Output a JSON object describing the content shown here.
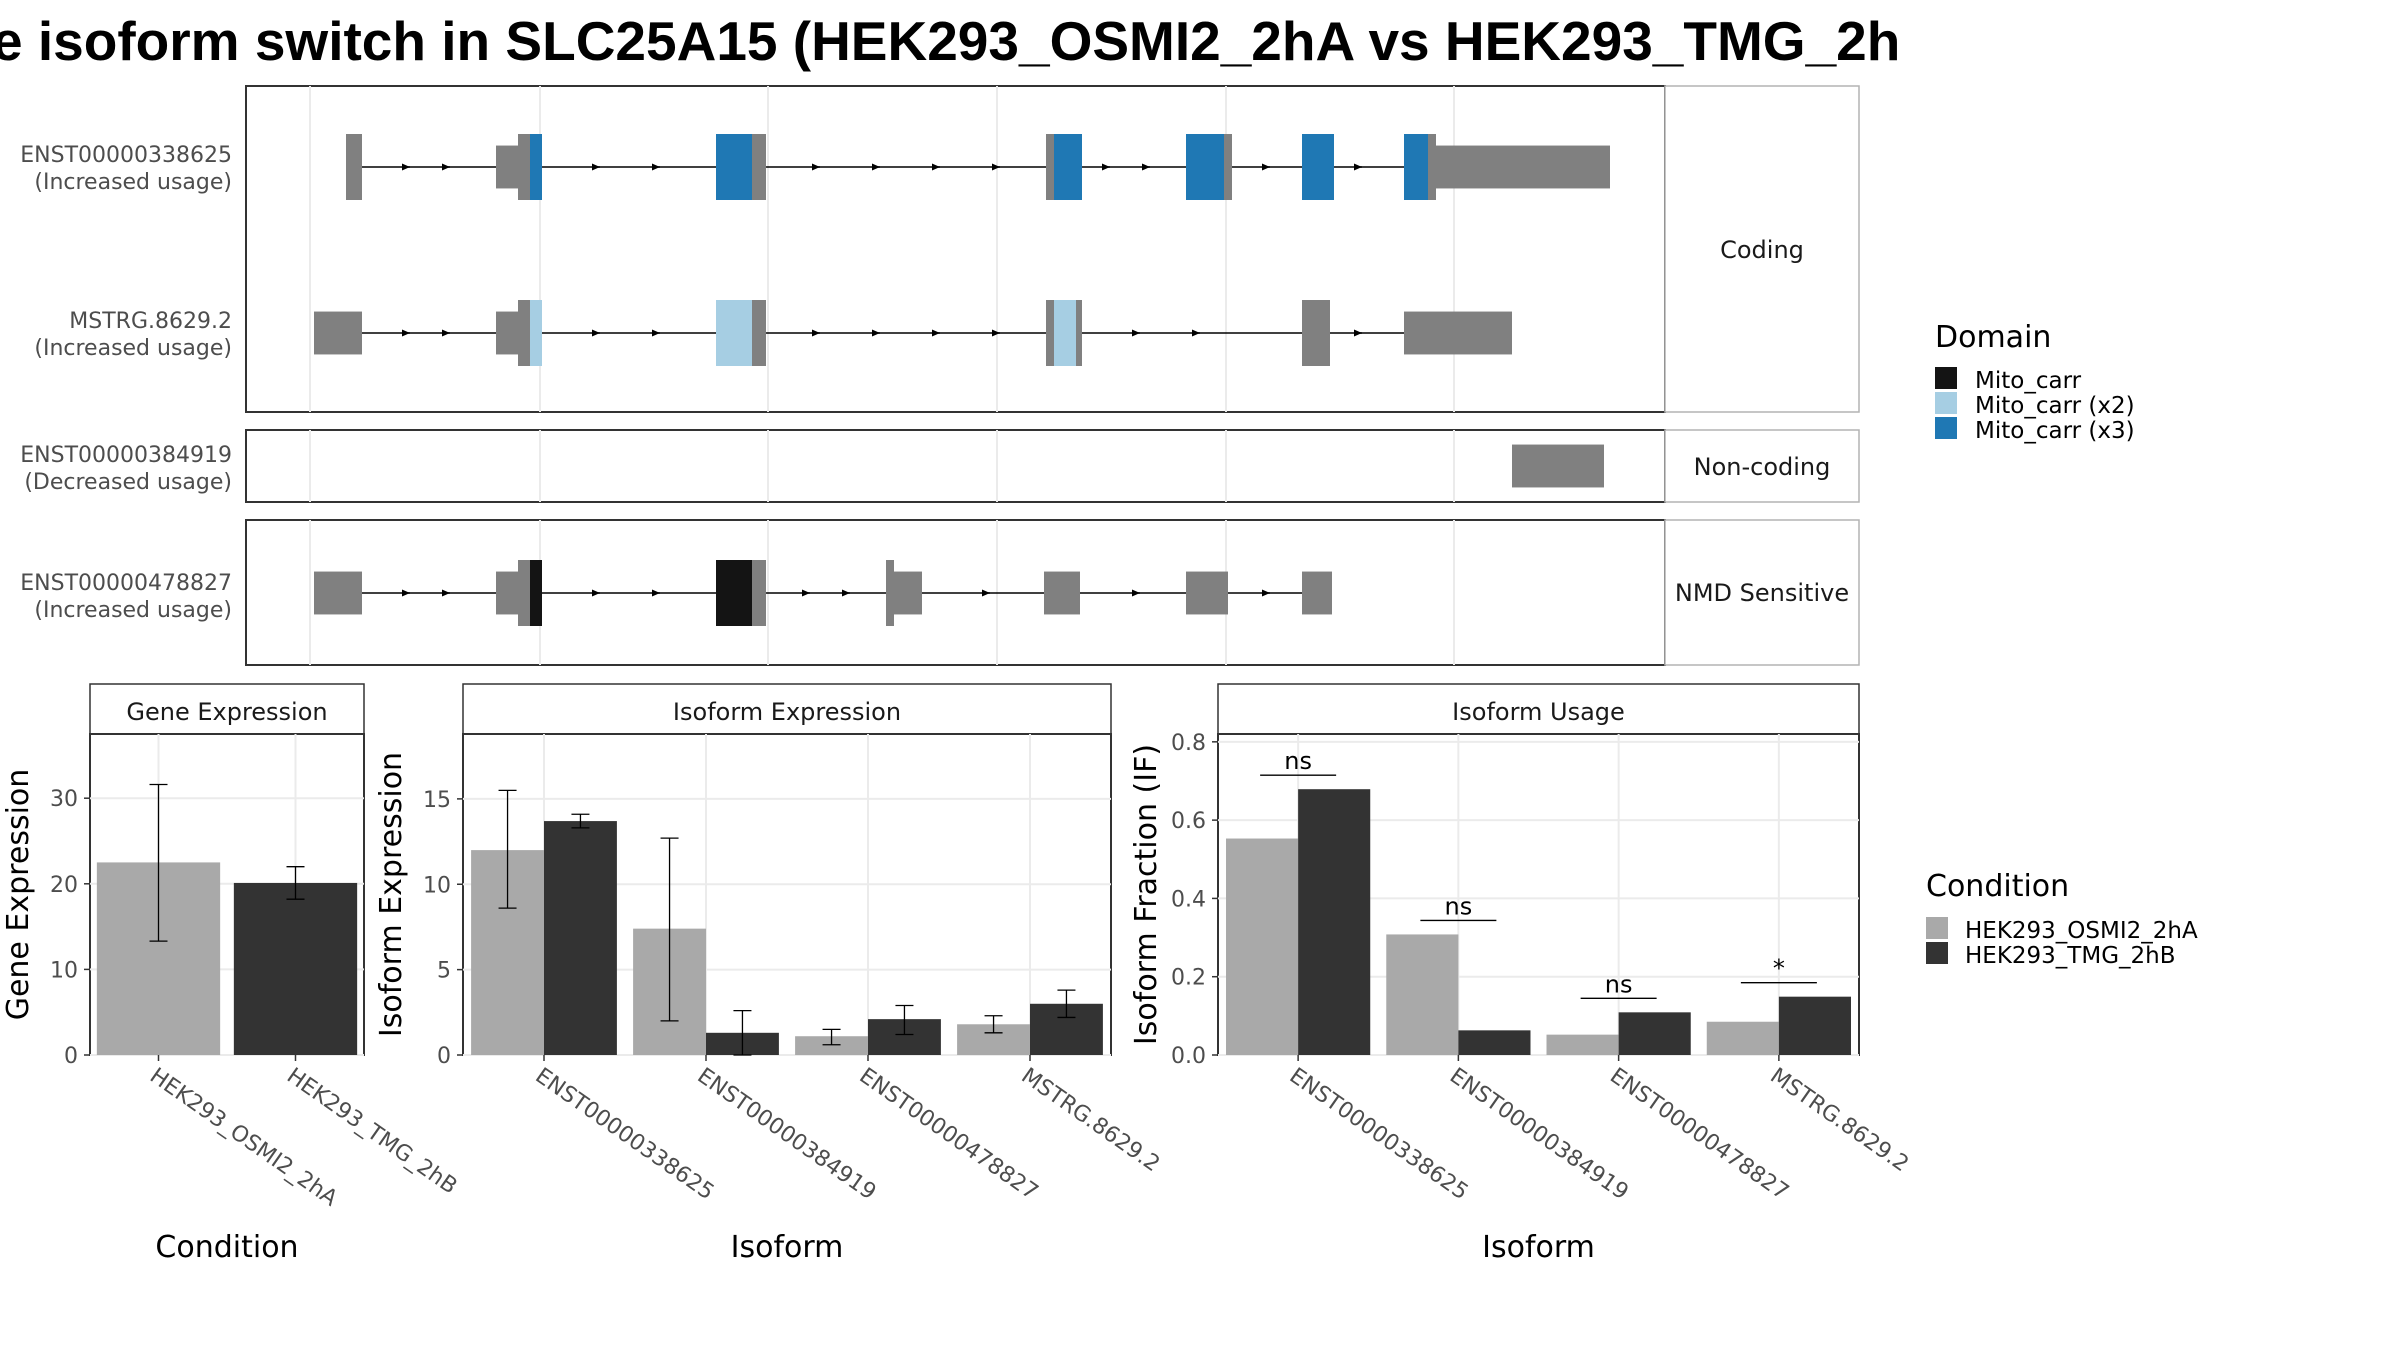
{
  "title": "e isoform switch in SLC25A15 (HEK293_OSMI2_2hA vs HEK293_TMG_2h",
  "colors": {
    "exon": "#808080",
    "mito_carr": "#141414",
    "mito_carr_x2": "#a6cee3",
    "mito_carr_x3": "#1f78b4",
    "cond_a": "#a9a9a9",
    "cond_b": "#333333"
  },
  "transcript_panel": {
    "rows": [
      {
        "id": "ENST00000338625",
        "usage": "(Increased usage)",
        "group": "Coding"
      },
      {
        "id": "MSTRG.8629.2",
        "usage": "(Increased usage)",
        "group": "Coding"
      },
      {
        "id": "ENST00000384919",
        "usage": "(Decreased usage)",
        "group": "Non-coding"
      },
      {
        "id": "ENST00000478827",
        "usage": "(Increased usage)",
        "group": "NMD Sensitive"
      }
    ],
    "facets": [
      "Coding",
      "Non-coding",
      "NMD Sensitive"
    ]
  },
  "domain_legend": {
    "title": "Domain",
    "items": [
      {
        "label": "Mito_carr",
        "color": "#141414"
      },
      {
        "label": "Mito_carr (x2)",
        "color": "#a6cee3"
      },
      {
        "label": "Mito_carr (x3)",
        "color": "#1f78b4"
      }
    ]
  },
  "condition_legend": {
    "title": "Condition",
    "items": [
      {
        "label": "HEK293_OSMI2_2hA",
        "color": "#a9a9a9"
      },
      {
        "label": "HEK293_TMG_2hB",
        "color": "#333333"
      }
    ]
  },
  "chart_data": [
    {
      "type": "bar",
      "title": "Gene Expression",
      "xlabel": "Condition",
      "ylabel": "Gene Expression",
      "categories": [
        "HEK293_OSMI2_2hA",
        "HEK293_TMG_2hB"
      ],
      "values": [
        22.5,
        20.1
      ],
      "errors": [
        [
          13.3,
          31.6
        ],
        [
          18.2,
          22.0
        ]
      ],
      "ylim": [
        0,
        37.5
      ],
      "yticks": [
        0,
        10,
        20,
        30
      ]
    },
    {
      "type": "bar",
      "title": "Isoform Expression",
      "xlabel": "Isoform",
      "ylabel": "Isoform Expression",
      "categories": [
        "ENST00000338625",
        "ENST00000384919",
        "ENST00000478827",
        "MSTRG.8629.2"
      ],
      "series": [
        {
          "name": "HEK293_OSMI2_2hA",
          "values": [
            12.0,
            7.4,
            1.1,
            1.8
          ],
          "errors": [
            [
              8.6,
              15.5
            ],
            [
              2.0,
              12.7
            ],
            [
              0.6,
              1.5
            ],
            [
              1.3,
              2.3
            ]
          ]
        },
        {
          "name": "HEK293_TMG_2hB",
          "values": [
            13.7,
            1.3,
            2.1,
            3.0
          ],
          "errors": [
            [
              13.3,
              14.1
            ],
            [
              0.0,
              2.6
            ],
            [
              1.2,
              2.9
            ],
            [
              2.2,
              3.8
            ]
          ]
        }
      ],
      "ylim": [
        0,
        18.8
      ],
      "yticks": [
        0,
        5,
        10,
        15
      ]
    },
    {
      "type": "bar",
      "title": "Isoform Usage",
      "xlabel": "Isoform",
      "ylabel": "Isoform Fraction (IF)",
      "categories": [
        "ENST00000338625",
        "ENST00000384919",
        "ENST00000478827",
        "MSTRG.8629.2"
      ],
      "series": [
        {
          "name": "HEK293_OSMI2_2hA",
          "values": [
            0.553,
            0.308,
            0.052,
            0.085
          ]
        },
        {
          "name": "HEK293_TMG_2hB",
          "values": [
            0.679,
            0.063,
            0.109,
            0.149
          ]
        }
      ],
      "significance": [
        "ns",
        "ns",
        "ns",
        "*"
      ],
      "ylim": [
        0,
        0.82
      ],
      "yticks": [
        0.0,
        0.2,
        0.4,
        0.6,
        0.8
      ],
      "ytick_labels": [
        "0.0",
        "0.2",
        "0.4",
        "0.6",
        "0.8"
      ]
    }
  ]
}
